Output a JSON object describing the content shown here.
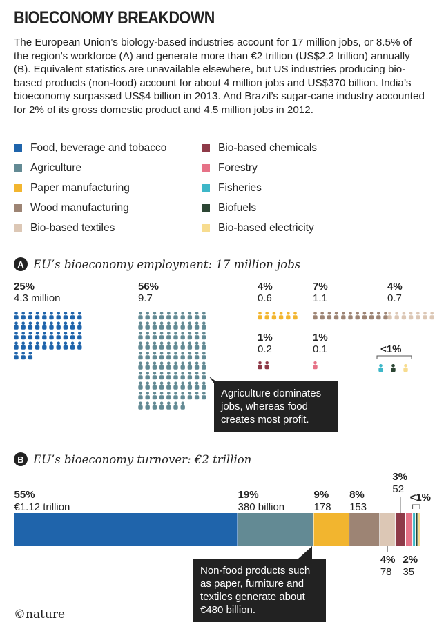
{
  "title": "BIOECONOMY BREAKDOWN",
  "intro": "The European Union’s biology-based industries account for 17 million jobs, or 8.5% of the region’s workforce (A) and generate more than €2 trillion (US$2.2 trillion) annually (B). Equivalent statistics are unavailable elsewhere, but US industries producing bio-based products (non-food) account for about 4 million jobs and US$370 billion. India’s bioeconomy surpassed US$4 billion in 2013. And Brazil’s sugar-cane industry accounted for 2% of its gross domestic product and 4.5 million jobs in 2012.",
  "legend": [
    {
      "label": "Food, beverage and tobacco",
      "color": "#1f64ab"
    },
    {
      "label": "Agriculture",
      "color": "#638a94"
    },
    {
      "label": "Paper manufacturing",
      "color": "#f2b52f"
    },
    {
      "label": "Wood manufacturing",
      "color": "#9d8474"
    },
    {
      "label": "Bio-based textiles",
      "color": "#dcc7b5"
    },
    {
      "label": "Bio-based chemicals",
      "color": "#8e3a48"
    },
    {
      "label": "Forestry",
      "color": "#e67287"
    },
    {
      "label": "Fisheries",
      "color": "#3eb7c8"
    },
    {
      "label": "Biofuels",
      "color": "#2c4634"
    },
    {
      "label": "Bio-based electricity",
      "color": "#f7dc8f"
    }
  ],
  "section_a": {
    "badge": "A",
    "title": "EU’s bioeconomy employment: 17 million jobs"
  },
  "section_b": {
    "badge": "B",
    "title": "EU’s bioeconomy turnover: €2 trillion"
  },
  "callout_a": "Agriculture dominates jobs, whereas food creates most profit.",
  "callout_b": "Non-food products such as paper, furniture and textiles generate about €480 billion.",
  "footer": "©nature",
  "chart_data": [
    {
      "type": "pictogram",
      "title": "EU’s bioeconomy employment: 17 million jobs",
      "unit": "million jobs",
      "groups": [
        {
          "sector": "Food, beverage and tobacco",
          "pct": "25%",
          "value": "4.3 million",
          "count": 43,
          "cols": 10
        },
        {
          "sector": "Agriculture",
          "pct": "56%",
          "value": "9.7",
          "count": 97,
          "cols": 10
        },
        {
          "sector": "Paper manufacturing",
          "pct": "4%",
          "value": "0.6",
          "count": 6,
          "cols": 6
        },
        {
          "sector": "Wood manufacturing",
          "pct": "7%",
          "value": "1.1",
          "count": 11,
          "cols": 11
        },
        {
          "sector": "Bio-based textiles",
          "pct": "4%",
          "value": "0.7",
          "count": 7,
          "cols": 7
        },
        {
          "sector": "Bio-based chemicals",
          "pct": "1%",
          "value": "0.2",
          "count": 2,
          "cols": 2
        },
        {
          "sector": "Forestry",
          "pct": "1%",
          "value": "0.1",
          "count": 1,
          "cols": 1
        },
        {
          "sector": "Fisheries",
          "pct": "<1%",
          "value": "",
          "count": 1,
          "cols": 1
        },
        {
          "sector": "Biofuels",
          "pct": "<1%",
          "value": "",
          "count": 1,
          "cols": 1
        },
        {
          "sector": "Bio-based electricity",
          "pct": "<1%",
          "value": "",
          "count": 1,
          "cols": 1
        }
      ],
      "small_group_label": "<1%"
    },
    {
      "type": "bar",
      "orientation": "stacked-horizontal",
      "title": "EU’s bioeconomy turnover: €2 trillion",
      "unit": "€ billion",
      "segments": [
        {
          "sector": "Food, beverage and tobacco",
          "value": 1120,
          "pct": "55%",
          "label": "€1.12 trillion"
        },
        {
          "sector": "Agriculture",
          "value": 380,
          "pct": "19%",
          "label": "380 billion"
        },
        {
          "sector": "Paper manufacturing",
          "value": 178,
          "pct": "9%",
          "label": "178"
        },
        {
          "sector": "Wood manufacturing",
          "value": 153,
          "pct": "8%",
          "label": "153"
        },
        {
          "sector": "Bio-based textiles",
          "value": 78,
          "pct": "4%",
          "label": "78"
        },
        {
          "sector": "Bio-based chemicals",
          "value": 52,
          "pct": "3%",
          "label": "52"
        },
        {
          "sector": "Forestry",
          "value": 35,
          "pct": "2%",
          "label": "35"
        },
        {
          "sector": "Fisheries",
          "value": 14,
          "pct": "<1%",
          "label": ""
        },
        {
          "sector": "Biofuels",
          "value": 12,
          "pct": "<1%",
          "label": ""
        },
        {
          "sector": "Bio-based electricity",
          "value": 10,
          "pct": "<1%",
          "label": ""
        }
      ],
      "small_group_label": "<1%"
    }
  ]
}
